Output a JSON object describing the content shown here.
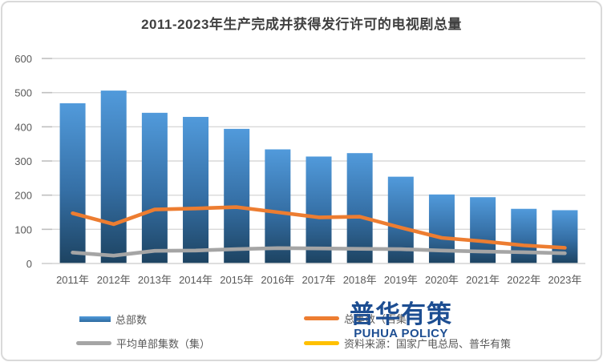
{
  "title": "2011-2023年生产完成并获得发行许可的电视剧总量",
  "colors": {
    "bar_top": "#519ADB",
    "bar_bottom": "#1D4361",
    "line_total_episodes": "#ED7D31",
    "line_avg_episodes": "#A5A5A5",
    "source_swatch": "#FFC000",
    "grid": "#D9D9D9",
    "tick": "#BFBFBF",
    "axis_line": "#D9D9D9",
    "axis_text": "#595959",
    "title_text": "#404040",
    "watermark_blue": "#1D4E92"
  },
  "chart_data": {
    "type": "bar",
    "title": "2011-2023年生产完成并获得发行许可的电视剧总量",
    "categories": [
      "2011年",
      "2012年",
      "2013年",
      "2014年",
      "2015年",
      "2016年",
      "2017年",
      "2018年",
      "2019年",
      "2020年",
      "2021年",
      "2022年",
      "2023年"
    ],
    "series": [
      {
        "name": "总部数",
        "type": "bar",
        "values": [
          469,
          506,
          441,
          429,
          394,
          334,
          313,
          323,
          254,
          202,
          194,
          160,
          156
        ]
      },
      {
        "name": "总集数（百集）",
        "type": "line",
        "color": "#ED7D31",
        "values": [
          147,
          115,
          158,
          161,
          165,
          150,
          135,
          137,
          105,
          75,
          65,
          53,
          46
        ]
      },
      {
        "name": "平均单部集数（集）",
        "type": "line",
        "color": "#A5A5A5",
        "values": [
          32,
          23,
          37,
          38,
          42,
          45,
          44,
          43,
          42,
          38,
          35,
          33,
          30
        ]
      }
    ],
    "xlabel": "",
    "ylabel": "",
    "ylim": [
      0,
      600
    ],
    "yticks": [
      0,
      100,
      200,
      300,
      400,
      500,
      600
    ],
    "grid": true,
    "legend_position": "bottom"
  },
  "legend": {
    "items": [
      {
        "label": "总部数",
        "swatch": "bar-swatch"
      },
      {
        "label": "总集数（百集）",
        "swatch": "line-swatch"
      },
      {
        "label": "平均单部集数（集）",
        "swatch": "line-swatch"
      },
      {
        "label": "资料来源：国家广电总局、普华有策",
        "swatch": "line-swatch"
      }
    ]
  },
  "watermark": {
    "cn": "普华有策",
    "en": "PUHUA POLICY"
  }
}
